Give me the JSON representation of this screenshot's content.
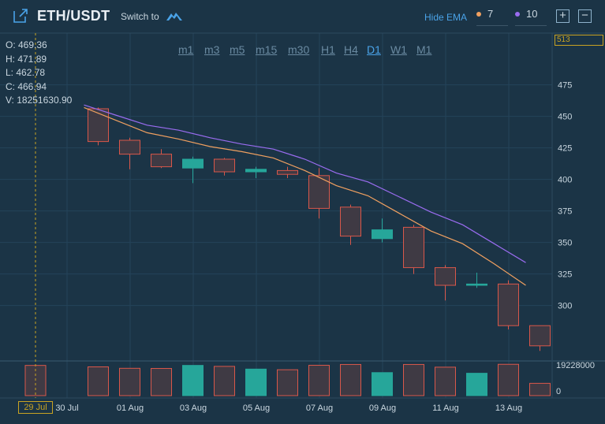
{
  "header": {
    "title": "ETH/USDT",
    "switch_label": "Switch to",
    "logo_icon": "cloud-logo-icon",
    "expand_icon": "expand-icon",
    "hide_ema_label": "Hide EMA",
    "ema": [
      {
        "value": "7",
        "color": "#f0a060"
      },
      {
        "value": "10",
        "color": "#9a6cf0"
      }
    ],
    "zoom_in": "+",
    "zoom_out": "−"
  },
  "ohlc": {
    "open": "O: 469.36",
    "high": "H: 471.89",
    "low": "L: 462.78",
    "close": "C: 466.94",
    "volume": "V: 18251630.90"
  },
  "timeframes": [
    {
      "label": "m1",
      "active": false
    },
    {
      "label": "m3",
      "active": false
    },
    {
      "label": "m5",
      "active": false
    },
    {
      "label": "m15",
      "active": false
    },
    {
      "label": "m30",
      "active": false
    },
    {
      "label": "H1",
      "active": false
    },
    {
      "label": "H4",
      "active": false
    },
    {
      "label": "D1",
      "active": true
    },
    {
      "label": "W1",
      "active": false
    },
    {
      "label": "M1",
      "active": false
    }
  ],
  "crosshair": {
    "price_label": "513",
    "date_label": "29 Jul"
  },
  "chart_data": {
    "type": "candlestick",
    "price_axis": {
      "ticks": [
        475,
        450,
        425,
        400,
        375,
        350,
        325,
        300
      ],
      "range": [
        256,
        516
      ]
    },
    "volume_axis": {
      "max_label": "19228000",
      "min_label": "0",
      "max": 19228000
    },
    "x_tick_labels": [
      "30 Jul",
      "01 Aug",
      "03 Aug",
      "05 Aug",
      "07 Aug",
      "09 Aug",
      "11 Aug",
      "13 Aug"
    ],
    "colors": {
      "up": "#26a69a",
      "down": "#d9574a",
      "ema7": "#f0a060",
      "ema10": "#9a6cf0"
    },
    "candles": [
      {
        "date": "31 Jul",
        "open": 456,
        "high": 457,
        "low": 427,
        "close": 430,
        "volume": 18000000
      },
      {
        "date": "01 Aug",
        "open": 431,
        "high": 433,
        "low": 408,
        "close": 420,
        "volume": 17100000
      },
      {
        "date": "02 Aug",
        "open": 420,
        "high": 424,
        "low": 409,
        "close": 410,
        "volume": 17000000
      },
      {
        "date": "03 Aug",
        "open": 409,
        "high": 418,
        "low": 397,
        "close": 416,
        "volume": 18900000
      },
      {
        "date": "04 Aug",
        "open": 416,
        "high": 417,
        "low": 403,
        "close": 406,
        "volume": 18300000
      },
      {
        "date": "05 Aug",
        "open": 406,
        "high": 410,
        "low": 401,
        "close": 408,
        "volume": 16600000
      },
      {
        "date": "06 Aug",
        "open": 407,
        "high": 410,
        "low": 401,
        "close": 404,
        "volume": 16200000
      },
      {
        "date": "07 Aug",
        "open": 403,
        "high": 409,
        "low": 369,
        "close": 377,
        "volume": 19000000
      },
      {
        "date": "08 Aug",
        "open": 378,
        "high": 380,
        "low": 348,
        "close": 355,
        "volume": 19500000
      },
      {
        "date": "09 Aug",
        "open": 353,
        "high": 369,
        "low": 350,
        "close": 360,
        "volume": 14400000
      },
      {
        "date": "10 Aug",
        "open": 362,
        "high": 364,
        "low": 325,
        "close": 330,
        "volume": 19500000
      },
      {
        "date": "11 Aug",
        "open": 330,
        "high": 332,
        "low": 304,
        "close": 316,
        "volume": 17800000
      },
      {
        "date": "12 Aug",
        "open": 316,
        "high": 326,
        "low": 314,
        "close": 317,
        "volume": 14000000
      },
      {
        "date": "13 Aug",
        "open": 317,
        "high": 320,
        "low": 281,
        "close": 284,
        "volume": 19600000
      },
      {
        "date": "14 Aug",
        "open": 284,
        "high": 284,
        "low": 264,
        "close": 268,
        "volume": 7700000
      }
    ],
    "ema7": [
      457,
      447,
      437,
      432,
      426,
      422,
      417,
      407,
      395,
      387,
      373,
      359,
      349,
      333,
      316
    ],
    "ema10": [
      459,
      451,
      443,
      439,
      433,
      428,
      424,
      416,
      405,
      398,
      386,
      374,
      364,
      349,
      334
    ]
  }
}
